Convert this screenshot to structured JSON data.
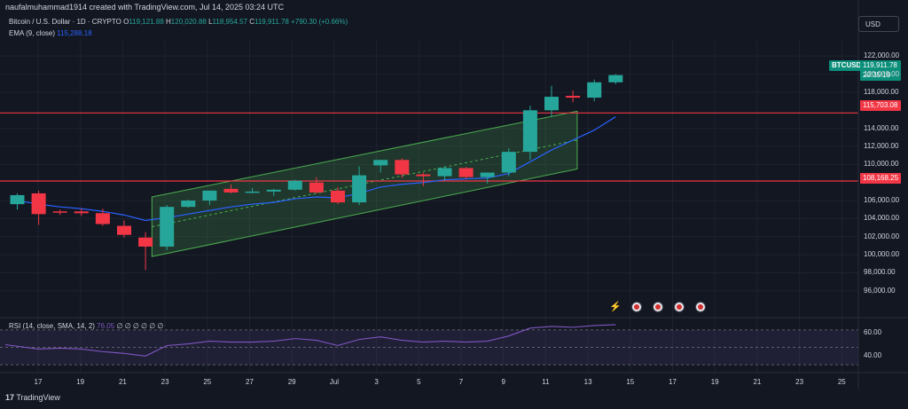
{
  "header": {
    "author_line": "naufalmuhammad1914 created with TradingView.com, Jul 14, 2025 03:24 UTC",
    "symbol_title": "Bitcoin / U.S. Dollar · 1D · CRYPTO",
    "ohlc": {
      "o_label": "O",
      "o": "119,121.88",
      "h_label": "H",
      "h": "120,020.88",
      "l_label": "L",
      "l": "118,954.57",
      "c_label": "C",
      "c": "119,911.78",
      "change": "+790.30 (+0.66%)"
    },
    "ema_label": "EMA (9, close)",
    "ema_value": "115,288.18",
    "currency_button": "USD"
  },
  "price_tags": {
    "symbol": "BTCUSD",
    "last_price": "119,911.78",
    "countdown": "20:35:19",
    "resistance": "115,703.08",
    "support": "108,168.25"
  },
  "y_axis": [
    "122,000.00",
    "120,000.00",
    "118,000.00",
    "114,000.00",
    "112,000.00",
    "110,000.00",
    "106,000.00",
    "104,000.00",
    "102,000.00",
    "100,000.00",
    "98,000.00",
    "96,000.00"
  ],
  "x_axis": [
    "17",
    "19",
    "21",
    "23",
    "25",
    "27",
    "29",
    "Jul",
    "3",
    "5",
    "7",
    "9",
    "11",
    "13",
    "15",
    "17",
    "19",
    "21",
    "23",
    "25"
  ],
  "rsi": {
    "label": "RSI (14, close, SMA, 14, 2)",
    "value": "76.05",
    "placeholders": "∅ ∅ ∅ ∅ ∅ ∅",
    "levels": [
      "60.00",
      "40.00"
    ]
  },
  "footer": {
    "brand": "TradingView"
  },
  "colors": {
    "background": "#131722",
    "up": "#26a69a",
    "down": "#f23645",
    "ema": "#2962ff",
    "rsi": "#7e57c2",
    "channel": "#4caf50",
    "level": "#f23645"
  },
  "chart_data": {
    "type": "candlestick",
    "interval": "1D",
    "candles": [
      {
        "o": 105600,
        "h": 106800,
        "l": 105000,
        "c": 106600
      },
      {
        "o": 106800,
        "h": 107100,
        "l": 103300,
        "c": 104500
      },
      {
        "o": 104800,
        "h": 105000,
        "l": 104400,
        "c": 104700
      },
      {
        "o": 104800,
        "h": 105100,
        "l": 104300,
        "c": 104600
      },
      {
        "o": 104600,
        "h": 105100,
        "l": 103200,
        "c": 103400
      },
      {
        "o": 103200,
        "h": 103800,
        "l": 101900,
        "c": 102200
      },
      {
        "o": 101900,
        "h": 102500,
        "l": 98300,
        "c": 100900
      },
      {
        "o": 100900,
        "h": 105500,
        "l": 100500,
        "c": 105300
      },
      {
        "o": 105300,
        "h": 106100,
        "l": 105200,
        "c": 106000
      },
      {
        "o": 106000,
        "h": 107100,
        "l": 105500,
        "c": 107100
      },
      {
        "o": 107300,
        "h": 107800,
        "l": 106800,
        "c": 106900
      },
      {
        "o": 106900,
        "h": 107400,
        "l": 106800,
        "c": 107000
      },
      {
        "o": 107000,
        "h": 107300,
        "l": 106500,
        "c": 107200
      },
      {
        "o": 107200,
        "h": 108300,
        "l": 107100,
        "c": 108200
      },
      {
        "o": 108000,
        "h": 108600,
        "l": 106800,
        "c": 106900
      },
      {
        "o": 107100,
        "h": 107500,
        "l": 105600,
        "c": 105800
      },
      {
        "o": 105800,
        "h": 109800,
        "l": 105500,
        "c": 108800
      },
      {
        "o": 109900,
        "h": 110500,
        "l": 109100,
        "c": 110500
      },
      {
        "o": 110500,
        "h": 110700,
        "l": 108500,
        "c": 108900
      },
      {
        "o": 108900,
        "h": 109100,
        "l": 107600,
        "c": 108700
      },
      {
        "o": 108700,
        "h": 109800,
        "l": 108200,
        "c": 109600
      },
      {
        "o": 109600,
        "h": 109700,
        "l": 108400,
        "c": 108600
      },
      {
        "o": 108600,
        "h": 109100,
        "l": 107900,
        "c": 109100
      },
      {
        "o": 109100,
        "h": 111800,
        "l": 108700,
        "c": 111400
      },
      {
        "o": 111400,
        "h": 116500,
        "l": 110500,
        "c": 116000
      },
      {
        "o": 116000,
        "h": 118700,
        "l": 115300,
        "c": 117500
      },
      {
        "o": 117600,
        "h": 118200,
        "l": 116900,
        "c": 117400
      },
      {
        "o": 117400,
        "h": 119400,
        "l": 117000,
        "c": 119100
      },
      {
        "o": 119100,
        "h": 120000,
        "l": 118900,
        "c": 119900
      }
    ],
    "ema_9": [
      106000,
      105600,
      105300,
      105100,
      104800,
      104400,
      103800,
      104100,
      104500,
      104900,
      105300,
      105600,
      105800,
      106200,
      106400,
      106300,
      106800,
      107500,
      107800,
      108000,
      108300,
      108400,
      108500,
      109000,
      110300,
      111600,
      112700,
      113800,
      115288
    ],
    "rsi_14": [
      53,
      48,
      49,
      48,
      45,
      43,
      40,
      52,
      54,
      57,
      56,
      56,
      57,
      60,
      58,
      52,
      59,
      62,
      58,
      56,
      57,
      56,
      57,
      63,
      72,
      74,
      73,
      75,
      76
    ],
    "levels": [
      115703.08,
      108168.25
    ],
    "y_range": [
      95000,
      123500
    ]
  }
}
